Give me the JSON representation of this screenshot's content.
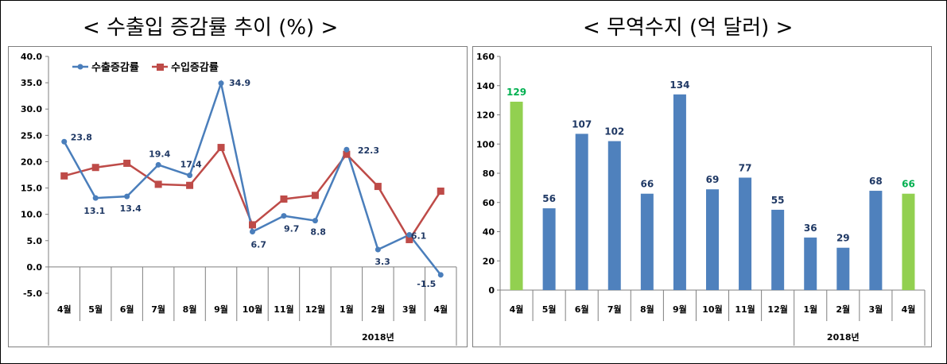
{
  "headings": {
    "left": "< 수출입 증감률 추이 (%) >",
    "right": "< 무역수지 (억 달러) >"
  },
  "colors": {
    "export_line": "#4a7ebb",
    "import_line": "#be4b48",
    "bar_default": "#4f81bd",
    "bar_highlight": "#92d050",
    "label_default": "#1f3864",
    "label_highlight": "#00b050",
    "grid": "#bfbfbf"
  },
  "chart_data": [
    {
      "type": "line",
      "title": "< 수출입 증감률 추이 (%) >",
      "categories": [
        "4월",
        "5월",
        "6월",
        "7월",
        "8월",
        "9월",
        "10월",
        "11월",
        "12월",
        "1월",
        "2월",
        "3월",
        "4월"
      ],
      "year_group_label": "2018년",
      "yticks": [
        "40.0",
        "35.0",
        "30.0",
        "25.0",
        "20.0",
        "15.0",
        "10.0",
        "5.0",
        "0.0",
        "-5.0"
      ],
      "ylim": [
        -5,
        40
      ],
      "grid": false,
      "legend_position": "top-left",
      "series": [
        {
          "name": "수출증감률",
          "color": "#4a7ebb",
          "marker": "circle",
          "values": [
            23.8,
            13.1,
            13.4,
            19.4,
            17.4,
            34.9,
            6.7,
            9.7,
            8.8,
            22.3,
            3.3,
            6.1,
            -1.5
          ],
          "labels": [
            "23.8",
            "13.1",
            "13.4",
            "19.4",
            "17.4",
            "34.9",
            "6.7",
            "9.7",
            "8.8",
            "22.3",
            "3.3",
            "6.1",
            "-1.5"
          ]
        },
        {
          "name": "수입증감률",
          "color": "#be4b48",
          "marker": "square",
          "values": [
            17.3,
            18.9,
            19.7,
            15.7,
            15.5,
            22.7,
            8.0,
            12.9,
            13.6,
            21.4,
            15.3,
            5.2,
            14.4
          ]
        }
      ]
    },
    {
      "type": "bar",
      "title": "< 무역수지 (억 달러) >",
      "categories": [
        "4월",
        "5월",
        "6월",
        "7월",
        "8월",
        "9월",
        "10월",
        "11월",
        "12월",
        "1월",
        "2월",
        "3월",
        "4월"
      ],
      "year_group_label": "2018년",
      "values": [
        129,
        56,
        107,
        102,
        66,
        134,
        69,
        77,
        55,
        36,
        29,
        68,
        66
      ],
      "labels": [
        "129",
        "56",
        "107",
        "102",
        "66",
        "134",
        "69",
        "77",
        "55",
        "36",
        "29",
        "68",
        "66"
      ],
      "highlight_indices": [
        0,
        12
      ],
      "yticks": [
        "160",
        "140",
        "120",
        "100",
        "80",
        "60",
        "40",
        "20",
        "0"
      ],
      "ylim": [
        0,
        160
      ],
      "grid": false
    }
  ]
}
